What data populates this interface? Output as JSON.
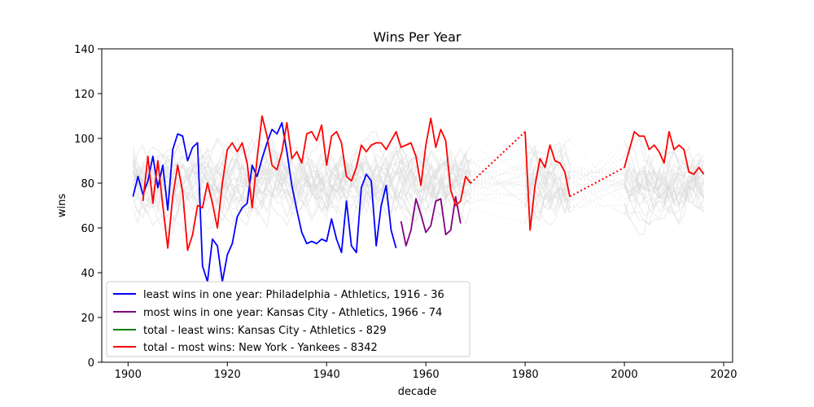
{
  "chart_data": {
    "type": "line",
    "title": "Wins Per Year",
    "xlabel": "decade",
    "ylabel": "wins",
    "xlim": [
      1894.7,
      2021.8
    ],
    "ylim": [
      0,
      140
    ],
    "x_ticks": [
      1900,
      1920,
      1940,
      1960,
      1980,
      2000,
      2020
    ],
    "y_ticks": [
      0,
      20,
      40,
      60,
      80,
      100,
      120,
      140
    ],
    "grid": false,
    "legend_position": "lower-left",
    "background_note_color": "#d9d9d9",
    "series": [
      {
        "name": "least wins in one year: Philadelphia - Athletics, 1916 - 36",
        "color": "#0000ff",
        "segments": [
          {
            "style": "solid",
            "x": [
              1901,
              1902,
              1903,
              1904,
              1905,
              1906,
              1907,
              1908,
              1909,
              1910,
              1911,
              1912,
              1913,
              1914,
              1915,
              1916,
              1917,
              1918,
              1919,
              1920,
              1921,
              1922,
              1923,
              1924,
              1925,
              1926,
              1927,
              1928,
              1929,
              1930,
              1931,
              1932,
              1933,
              1934,
              1935,
              1936,
              1937,
              1938,
              1939,
              1940,
              1941,
              1942,
              1943,
              1944,
              1945,
              1946,
              1947,
              1948,
              1949,
              1950,
              1951,
              1952,
              1953,
              1954
            ],
            "y": [
              74,
              83,
              75,
              81,
              92,
              78,
              88,
              68,
              95,
              102,
              101,
              90,
              96,
              98,
              43,
              36,
              55,
              52,
              36,
              48,
              53,
              65,
              69,
              71,
              88,
              83,
              91,
              98,
              104,
              102,
              107,
              94,
              79,
              68,
              58,
              53,
              54,
              53,
              55,
              54,
              64,
              55,
              49,
              72,
              52,
              49,
              78,
              84,
              81,
              52,
              70,
              79,
              59,
              51
            ]
          }
        ]
      },
      {
        "name": "most wins in one year: Kansas City - Athletics, 1966 - 74",
        "color": "#800080",
        "segments": [
          {
            "style": "solid",
            "x": [
              1955,
              1956,
              1957,
              1958,
              1959,
              1960,
              1961,
              1962,
              1963,
              1964,
              1965,
              1966,
              1967
            ],
            "y": [
              63,
              52,
              59,
              73,
              66,
              58,
              61,
              72,
              73,
              57,
              59,
              74,
              62
            ]
          }
        ]
      },
      {
        "name": "total - least wins: Kansas City - Athletics - 829",
        "color": "#008000",
        "segments": []
      },
      {
        "name": "total - most wins: New York - Yankees - 8342",
        "color": "#ff0000",
        "segments": [
          {
            "style": "solid",
            "x": [
              1903,
              1904,
              1905,
              1906,
              1907,
              1908,
              1909,
              1910,
              1911,
              1912,
              1913,
              1914,
              1915,
              1916,
              1917,
              1918,
              1919,
              1920,
              1921,
              1922,
              1923,
              1924,
              1925,
              1926,
              1927,
              1928,
              1929,
              1930,
              1931,
              1932,
              1933,
              1934,
              1935,
              1936,
              1937,
              1938,
              1939,
              1940,
              1941,
              1942,
              1943,
              1944,
              1945,
              1946,
              1947,
              1948,
              1949,
              1950,
              1951,
              1952,
              1953,
              1954,
              1955,
              1956,
              1957,
              1958,
              1959,
              1960,
              1961,
              1962,
              1963,
              1964,
              1965,
              1966,
              1967,
              1968,
              1969
            ],
            "y": [
              72,
              92,
              71,
              90,
              70,
              51,
              74,
              88,
              76,
              50,
              57,
              70,
              69,
              80,
              71,
              60,
              80,
              95,
              98,
              94,
              98,
              89,
              69,
              91,
              110,
              101,
              88,
              86,
              94,
              107,
              91,
              94,
              89,
              102,
              103,
              99,
              106,
              88,
              101,
              103,
              98,
              83,
              81,
              87,
              97,
              94,
              97,
              98,
              98,
              95,
              99,
              103,
              96,
              97,
              98,
              92,
              79,
              97,
              109,
              96,
              104,
              99,
              77,
              70,
              72,
              83,
              80
            ]
          },
          {
            "style": "dotted",
            "x": [
              1969,
              1980
            ],
            "y": [
              80,
              103
            ]
          },
          {
            "style": "solid",
            "x": [
              1980,
              1981,
              1982,
              1983,
              1984,
              1985,
              1986,
              1987,
              1988,
              1989
            ],
            "y": [
              103,
              59,
              79,
              91,
              87,
              97,
              90,
              89,
              85,
              74
            ]
          },
          {
            "style": "dotted",
            "x": [
              1989,
              2000
            ],
            "y": [
              74,
              87
            ]
          },
          {
            "style": "solid",
            "x": [
              2000,
              2001,
              2002,
              2003,
              2004,
              2005,
              2006,
              2007,
              2008,
              2009,
              2010,
              2011,
              2012,
              2013,
              2014,
              2015,
              2016
            ],
            "y": [
              87,
              95,
              103,
              101,
              101,
              95,
              97,
              94,
              89,
              103,
              95,
              97,
              95,
              85,
              84,
              87,
              84
            ]
          }
        ]
      }
    ],
    "legend_entries": [
      "least wins in one year: Philadelphia - Athletics, 1916 - 36",
      "most wins in one year: Kansas City - Athletics, 1966 - 74",
      "total - least wins: Kansas City - Athletics - 829",
      "total - most wins: New York - Yankees - 8342"
    ]
  }
}
